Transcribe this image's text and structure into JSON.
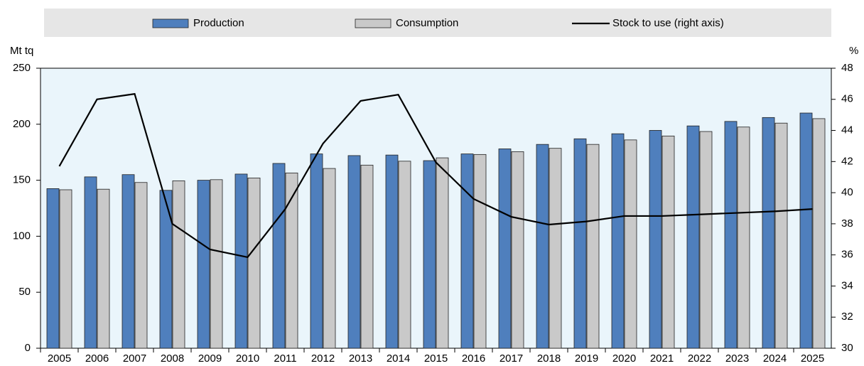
{
  "chart_data": {
    "type": "bar",
    "y_label": "Mt tq",
    "y2_label": "%",
    "categories": [
      "2005",
      "2006",
      "2007",
      "2008",
      "2009",
      "2010",
      "2011",
      "2012",
      "2013",
      "2014",
      "2015",
      "2016",
      "2017",
      "2018",
      "2019",
      "2020",
      "2021",
      "2022",
      "2023",
      "2024",
      "2025"
    ],
    "series": [
      {
        "name": "Production",
        "type": "bar",
        "color": "#4f7fbd",
        "values": [
          142.5,
          153,
          155,
          141,
          150,
          155.5,
          165,
          173.5,
          172,
          172.5,
          167.5,
          173.5,
          178,
          182,
          187,
          191.5,
          194.5,
          198.5,
          202.5,
          206,
          210
        ]
      },
      {
        "name": "Consumption",
        "type": "bar",
        "color": "#c9c9c9",
        "values": [
          141.5,
          142,
          148,
          149.5,
          150.5,
          152,
          156.5,
          160.5,
          163.5,
          167,
          170,
          173,
          175.5,
          178.5,
          182,
          186,
          189.5,
          193.5,
          197.5,
          201,
          205
        ]
      },
      {
        "name": "Stock to use (right axis)",
        "type": "line",
        "axis": "y2",
        "color": "#000000",
        "values": [
          41.7,
          46.0,
          46.35,
          38.0,
          36.35,
          35.85,
          38.95,
          43.15,
          45.9,
          46.3,
          41.95,
          39.6,
          38.45,
          37.95,
          38.15,
          38.5,
          38.5,
          38.6,
          38.7,
          38.8,
          38.95
        ]
      }
    ],
    "ylim": [
      0,
      250
    ],
    "yticks": [
      0,
      50,
      100,
      150,
      200,
      250
    ],
    "y2lim": [
      30,
      48
    ],
    "y2ticks": [
      30,
      32,
      34,
      36,
      38,
      40,
      42,
      44,
      46,
      48
    ],
    "grid": false,
    "legend": "top"
  }
}
